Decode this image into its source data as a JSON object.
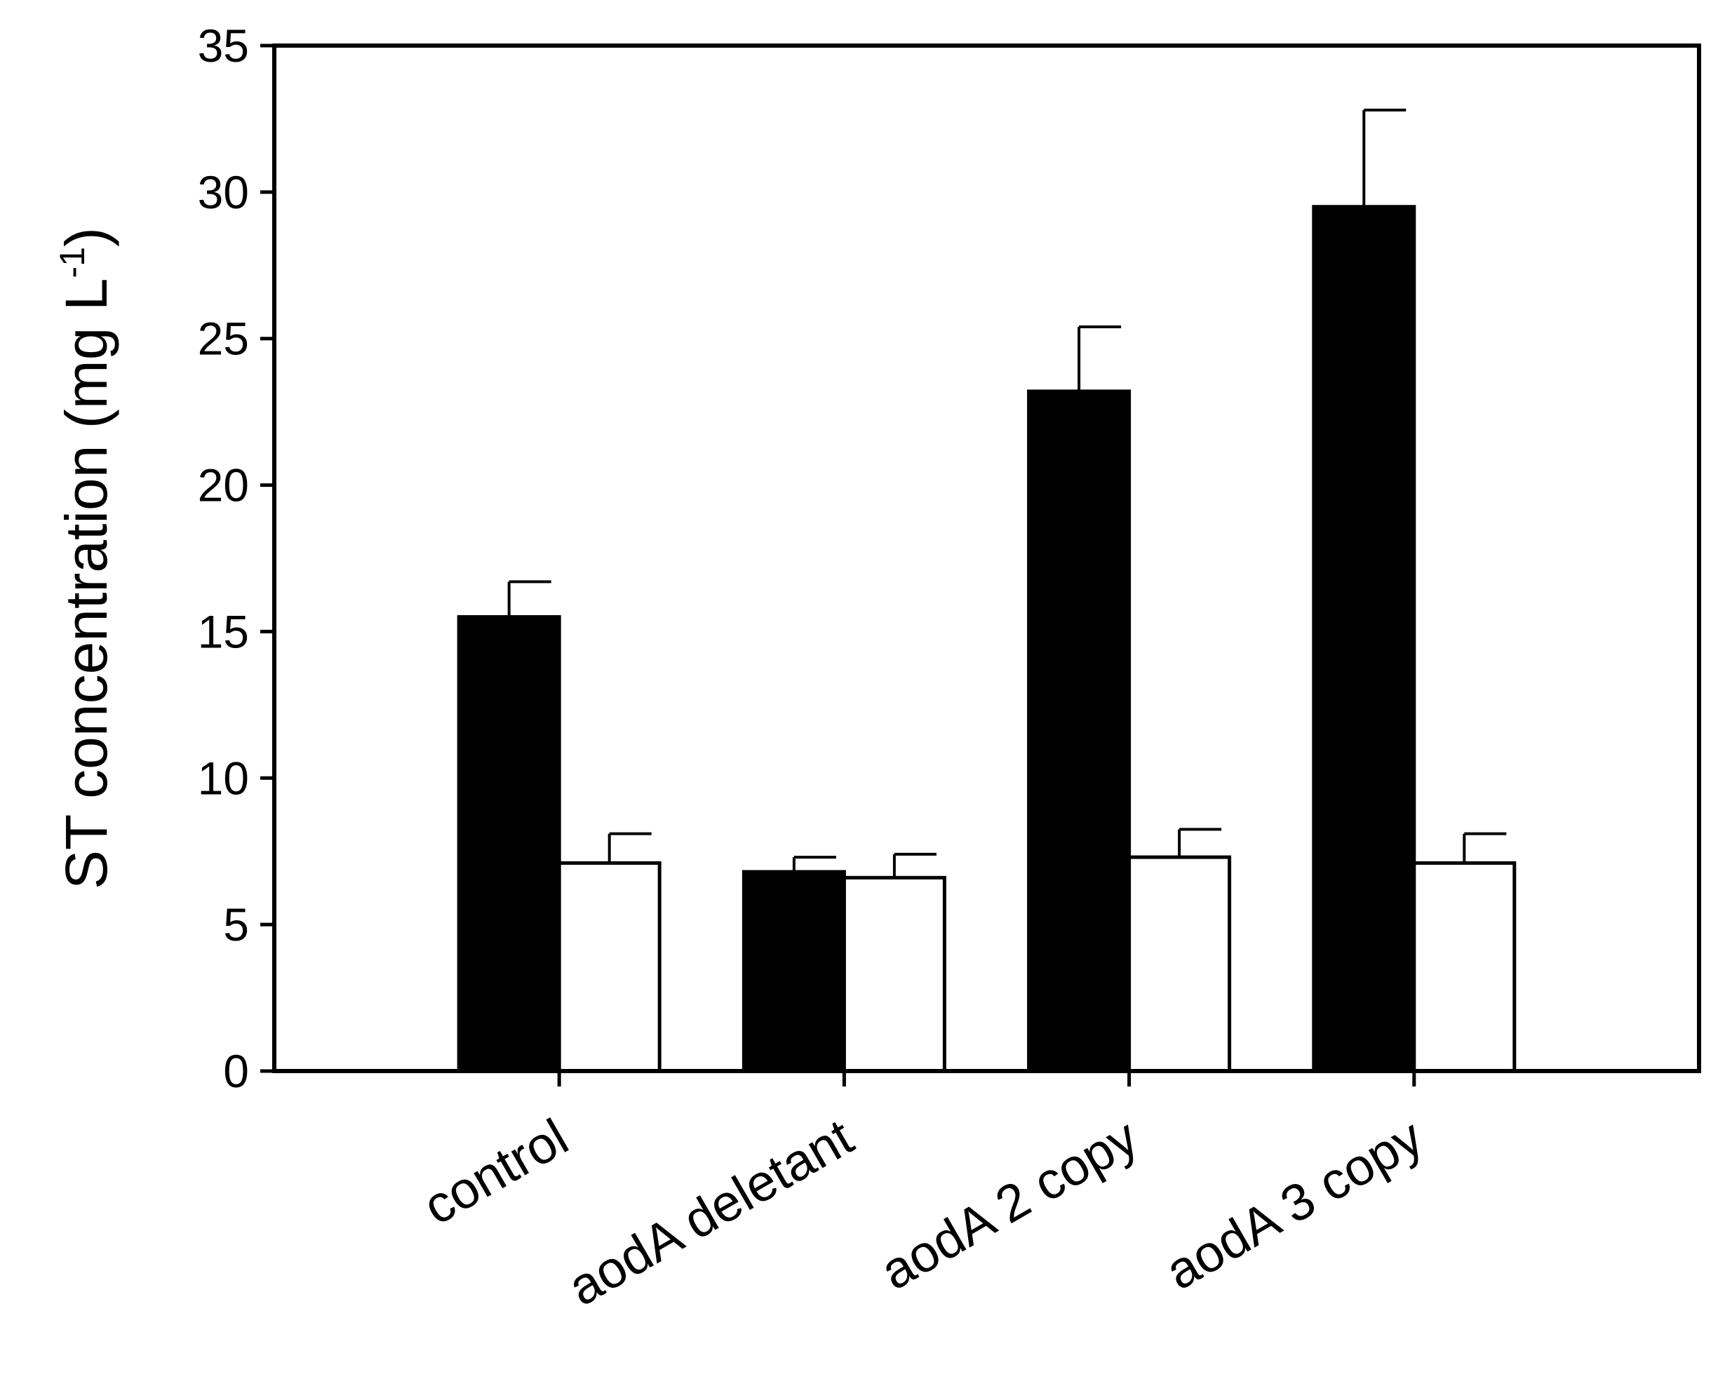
{
  "chart_data": {
    "type": "bar",
    "title": "",
    "xlabel": "",
    "ylabel": {
      "prefix": "ST concentration (mg L",
      "superscript": "-1",
      "suffix": ")"
    },
    "ylim": [
      0,
      35
    ],
    "yticks": [
      0,
      5,
      10,
      15,
      20,
      25,
      30,
      35
    ],
    "categories": [
      "control",
      "aodA deletant",
      "aodA 2 copy",
      "aodA 3 copy"
    ],
    "series": [
      {
        "fill": "#000000",
        "values": [
          15.5,
          6.8,
          23.2,
          29.5
        ],
        "errors": [
          1.2,
          0.5,
          2.2,
          3.3
        ]
      },
      {
        "fill": "#ffffff",
        "values": [
          7.1,
          6.6,
          7.3,
          7.1
        ],
        "errors": [
          1.0,
          0.8,
          0.95,
          1.0
        ]
      }
    ],
    "grid": false,
    "legend": "none"
  }
}
